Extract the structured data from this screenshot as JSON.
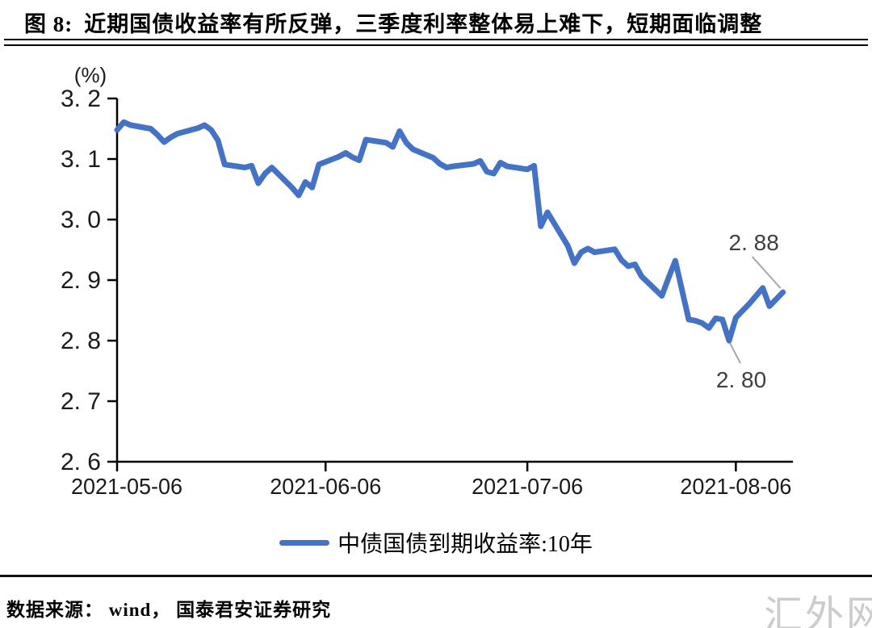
{
  "header": {
    "figure_label": "图 8:",
    "title": "近期国债收益率有所反弹，三季度利率整体易上难下，短期面临调整"
  },
  "chart_data": {
    "type": "line",
    "title": "图 8: 近期国债收益率有所反弹，三季度利率整体易上难下，短期面临调整",
    "ylabel": "(%)",
    "xlabel": "",
    "ylim": [
      2.6,
      3.2
    ],
    "grid": false,
    "legend_position": "bottom",
    "ytick_values": [
      3.2,
      3.1,
      3.0,
      2.9,
      2.8,
      2.7,
      2.6
    ],
    "ytick_labels": [
      "3. 2",
      "3. 1",
      "3. 0",
      "2. 9",
      "2. 8",
      "2. 7",
      "2. 6"
    ],
    "xtick_labels": [
      "2021-05-06",
      "2021-06-06",
      "2021-07-06",
      "2021-08-06"
    ],
    "xtick_days": [
      0,
      31,
      61,
      92
    ],
    "x_axis_end_day": 100.5,
    "series": [
      {
        "name": "中债国债到期收益率:10年",
        "color": "#4472C4",
        "points": [
          [
            0,
            3.148
          ],
          [
            1,
            3.161
          ],
          [
            2,
            3.156
          ],
          [
            5,
            3.15
          ],
          [
            6,
            3.14
          ],
          [
            7,
            3.128
          ],
          [
            8,
            3.136
          ],
          [
            9,
            3.142
          ],
          [
            12,
            3.151
          ],
          [
            13,
            3.156
          ],
          [
            14,
            3.148
          ],
          [
            15,
            3.131
          ],
          [
            16,
            3.091
          ],
          [
            19,
            3.086
          ],
          [
            20,
            3.089
          ],
          [
            21,
            3.06
          ],
          [
            22,
            3.076
          ],
          [
            23,
            3.086
          ],
          [
            26,
            3.053
          ],
          [
            27,
            3.04
          ],
          [
            28,
            3.062
          ],
          [
            29,
            3.053
          ],
          [
            30,
            3.091
          ],
          [
            33,
            3.104
          ],
          [
            34,
            3.11
          ],
          [
            35,
            3.103
          ],
          [
            36,
            3.098
          ],
          [
            37,
            3.132
          ],
          [
            40,
            3.127
          ],
          [
            41,
            3.12
          ],
          [
            42,
            3.146
          ],
          [
            43,
            3.127
          ],
          [
            44,
            3.116
          ],
          [
            47,
            3.102
          ],
          [
            48,
            3.092
          ],
          [
            49,
            3.086
          ],
          [
            50,
            3.088
          ],
          [
            53,
            3.092
          ],
          [
            54,
            3.097
          ],
          [
            55,
            3.079
          ],
          [
            56,
            3.076
          ],
          [
            57,
            3.094
          ],
          [
            58,
            3.088
          ],
          [
            61,
            3.083
          ],
          [
            62,
            3.089
          ],
          [
            63,
            2.989
          ],
          [
            64,
            3.012
          ],
          [
            67,
            2.957
          ],
          [
            68,
            2.928
          ],
          [
            69,
            2.946
          ],
          [
            70,
            2.952
          ],
          [
            71,
            2.946
          ],
          [
            74,
            2.951
          ],
          [
            75,
            2.933
          ],
          [
            76,
            2.923
          ],
          [
            77,
            2.926
          ],
          [
            78,
            2.906
          ],
          [
            81,
            2.874
          ],
          [
            82,
            2.904
          ],
          [
            83,
            2.932
          ],
          [
            85,
            2.835
          ],
          [
            86,
            2.833
          ],
          [
            87,
            2.829
          ],
          [
            88,
            2.821
          ],
          [
            89,
            2.837
          ],
          [
            90,
            2.835
          ],
          [
            91,
            2.8
          ],
          [
            92,
            2.838
          ],
          [
            94,
            2.861
          ],
          [
            96,
            2.887
          ],
          [
            97,
            2.857
          ],
          [
            99,
            2.88
          ]
        ]
      }
    ],
    "annotations": [
      {
        "label": "2. 88",
        "value": 2.88,
        "day": 99,
        "placement": "above"
      },
      {
        "label": "2. 80",
        "value": 2.8,
        "day": 91,
        "placement": "below"
      }
    ]
  },
  "legend": {
    "label": "中债国债到期收益率:10年"
  },
  "footer": {
    "source": "数据来源： wind， 国泰君安证券研究"
  },
  "watermark": {
    "text": "汇外网"
  },
  "colors": {
    "line": "#4472C4",
    "axis": "#000000",
    "tick_text": "#1a1a1a",
    "annotation_text": "#3f3f3f",
    "leader": "#a6a6a6",
    "watermark": "#cccccc"
  }
}
